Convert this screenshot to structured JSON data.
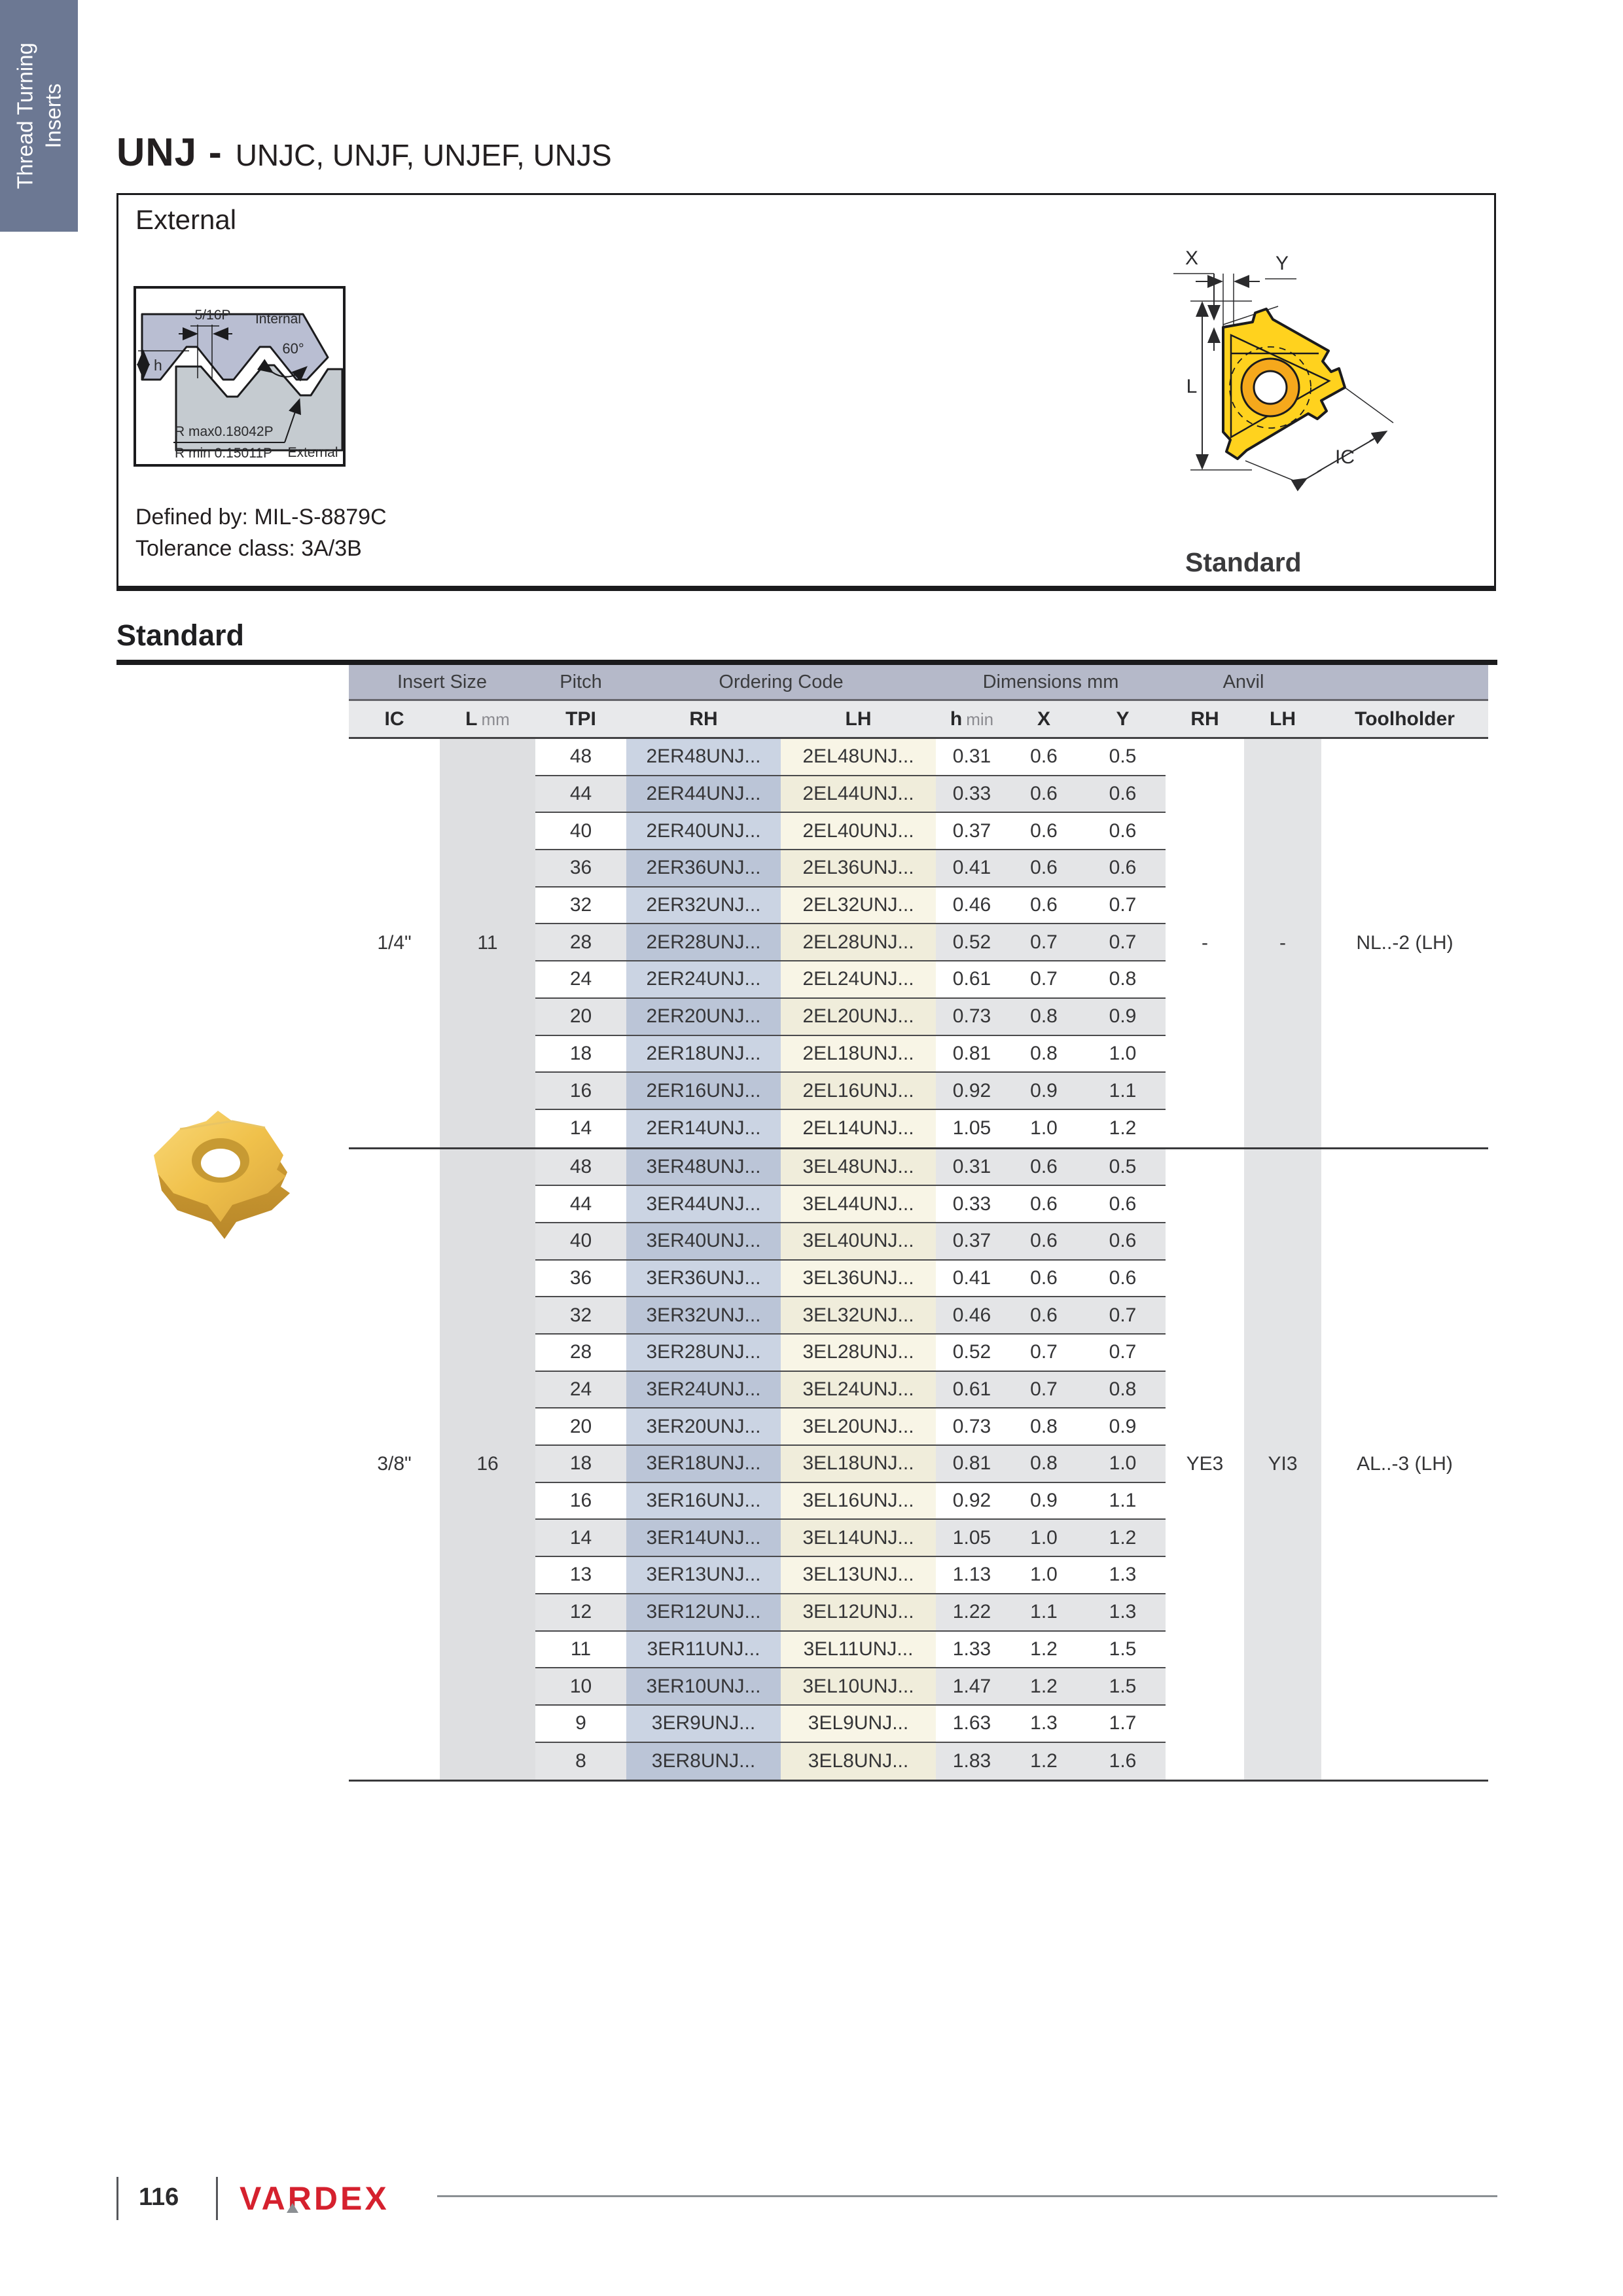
{
  "sidebar_tab": {
    "line1": "Thread Turning",
    "line2": "Inserts"
  },
  "title": {
    "main": "UNJ -",
    "models": "UNJC, UNJF, UNJEF, UNJS"
  },
  "external_panel": {
    "heading": "External",
    "defined_by": "Defined by: MIL-S-8879C",
    "tolerance": "Tolerance class: 3A/3B",
    "thread_diagram": {
      "pitch": "5/16P",
      "internal": "Internal",
      "angle": "60°",
      "h": "h",
      "r_max": "R max0.18042P",
      "r_min": "R min 0.15011P",
      "external": "External"
    },
    "insert_diagram": {
      "x": "X",
      "y": "Y",
      "l": "L",
      "ic": "IC",
      "caption": "Standard"
    }
  },
  "section_heading": "Standard",
  "table": {
    "group_headers": [
      {
        "label": "Insert Size"
      },
      {
        "label": "Pitch"
      },
      {
        "label": "Ordering Code"
      },
      {
        "label": "Dimensions mm"
      },
      {
        "label": "Anvil"
      }
    ],
    "subheaders": {
      "ic": "IC",
      "l": {
        "bold": "L",
        "unit": "mm"
      },
      "tpi": "TPI",
      "rh": "RH",
      "lh": "LH",
      "hmin": {
        "bold": "h",
        "unit": "min"
      },
      "x": "X",
      "y": "Y",
      "anvil_rh": "RH",
      "anvil_lh": "LH",
      "toolholder": "Toolholder"
    },
    "sections": [
      {
        "ic": "1/4\"",
        "l_mm": "11",
        "anvil_rh": "-",
        "anvil_lh": "-",
        "toolholder": "NL..-2 (LH)",
        "rows": [
          {
            "tpi": "48",
            "rh": "2ER48UNJ...",
            "lh": "2EL48UNJ...",
            "h_min": "0.31",
            "x": "0.6",
            "y": "0.5"
          },
          {
            "tpi": "44",
            "rh": "2ER44UNJ...",
            "lh": "2EL44UNJ...",
            "h_min": "0.33",
            "x": "0.6",
            "y": "0.6"
          },
          {
            "tpi": "40",
            "rh": "2ER40UNJ...",
            "lh": "2EL40UNJ...",
            "h_min": "0.37",
            "x": "0.6",
            "y": "0.6"
          },
          {
            "tpi": "36",
            "rh": "2ER36UNJ...",
            "lh": "2EL36UNJ...",
            "h_min": "0.41",
            "x": "0.6",
            "y": "0.6"
          },
          {
            "tpi": "32",
            "rh": "2ER32UNJ...",
            "lh": "2EL32UNJ...",
            "h_min": "0.46",
            "x": "0.6",
            "y": "0.7"
          },
          {
            "tpi": "28",
            "rh": "2ER28UNJ...",
            "lh": "2EL28UNJ...",
            "h_min": "0.52",
            "x": "0.7",
            "y": "0.7"
          },
          {
            "tpi": "24",
            "rh": "2ER24UNJ...",
            "lh": "2EL24UNJ...",
            "h_min": "0.61",
            "x": "0.7",
            "y": "0.8"
          },
          {
            "tpi": "20",
            "rh": "2ER20UNJ...",
            "lh": "2EL20UNJ...",
            "h_min": "0.73",
            "x": "0.8",
            "y": "0.9"
          },
          {
            "tpi": "18",
            "rh": "2ER18UNJ...",
            "lh": "2EL18UNJ...",
            "h_min": "0.81",
            "x": "0.8",
            "y": "1.0"
          },
          {
            "tpi": "16",
            "rh": "2ER16UNJ...",
            "lh": "2EL16UNJ...",
            "h_min": "0.92",
            "x": "0.9",
            "y": "1.1"
          },
          {
            "tpi": "14",
            "rh": "2ER14UNJ...",
            "lh": "2EL14UNJ...",
            "h_min": "1.05",
            "x": "1.0",
            "y": "1.2"
          }
        ]
      },
      {
        "ic": "3/8\"",
        "l_mm": "16",
        "anvil_rh": "YE3",
        "anvil_lh": "YI3",
        "toolholder": "AL..-3 (LH)",
        "rows": [
          {
            "tpi": "48",
            "rh": "3ER48UNJ...",
            "lh": "3EL48UNJ...",
            "h_min": "0.31",
            "x": "0.6",
            "y": "0.5"
          },
          {
            "tpi": "44",
            "rh": "3ER44UNJ...",
            "lh": "3EL44UNJ...",
            "h_min": "0.33",
            "x": "0.6",
            "y": "0.6"
          },
          {
            "tpi": "40",
            "rh": "3ER40UNJ...",
            "lh": "3EL40UNJ...",
            "h_min": "0.37",
            "x": "0.6",
            "y": "0.6"
          },
          {
            "tpi": "36",
            "rh": "3ER36UNJ...",
            "lh": "3EL36UNJ...",
            "h_min": "0.41",
            "x": "0.6",
            "y": "0.6"
          },
          {
            "tpi": "32",
            "rh": "3ER32UNJ...",
            "lh": "3EL32UNJ...",
            "h_min": "0.46",
            "x": "0.6",
            "y": "0.7"
          },
          {
            "tpi": "28",
            "rh": "3ER28UNJ...",
            "lh": "3EL28UNJ...",
            "h_min": "0.52",
            "x": "0.7",
            "y": "0.7"
          },
          {
            "tpi": "24",
            "rh": "3ER24UNJ...",
            "lh": "3EL24UNJ...",
            "h_min": "0.61",
            "x": "0.7",
            "y": "0.8"
          },
          {
            "tpi": "20",
            "rh": "3ER20UNJ...",
            "lh": "3EL20UNJ...",
            "h_min": "0.73",
            "x": "0.8",
            "y": "0.9"
          },
          {
            "tpi": "18",
            "rh": "3ER18UNJ...",
            "lh": "3EL18UNJ...",
            "h_min": "0.81",
            "x": "0.8",
            "y": "1.0"
          },
          {
            "tpi": "16",
            "rh": "3ER16UNJ...",
            "lh": "3EL16UNJ...",
            "h_min": "0.92",
            "x": "0.9",
            "y": "1.1"
          },
          {
            "tpi": "14",
            "rh": "3ER14UNJ...",
            "lh": "3EL14UNJ...",
            "h_min": "1.05",
            "x": "1.0",
            "y": "1.2"
          },
          {
            "tpi": "13",
            "rh": "3ER13UNJ...",
            "lh": "3EL13UNJ...",
            "h_min": "1.13",
            "x": "1.0",
            "y": "1.3"
          },
          {
            "tpi": "12",
            "rh": "3ER12UNJ...",
            "lh": "3EL12UNJ...",
            "h_min": "1.22",
            "x": "1.1",
            "y": "1.3"
          },
          {
            "tpi": "11",
            "rh": "3ER11UNJ...",
            "lh": "3EL11UNJ...",
            "h_min": "1.33",
            "x": "1.2",
            "y": "1.5"
          },
          {
            "tpi": "10",
            "rh": "3ER10UNJ...",
            "lh": "3EL10UNJ...",
            "h_min": "1.47",
            "x": "1.2",
            "y": "1.5"
          },
          {
            "tpi": "9",
            "rh": "3ER9UNJ...",
            "lh": "3EL9UNJ...",
            "h_min": "1.63",
            "x": "1.3",
            "y": "1.7"
          },
          {
            "tpi": "8",
            "rh": "3ER8UNJ...",
            "lh": "3EL8UNJ...",
            "h_min": "1.83",
            "x": "1.2",
            "y": "1.6"
          }
        ]
      }
    ]
  },
  "footer": {
    "page": "116",
    "logo": "VARDEX"
  },
  "colors": {
    "tab": "#6c7893",
    "table_group_header": "#b5b9c9",
    "row_stripe": "#e4e5e7",
    "rh_light": "#cbd4e3",
    "rh_dark": "#bbc5d7",
    "lh_light": "#f8f5e6",
    "lh_dark": "#f0eddb",
    "l_mm_band": "#dedfe1",
    "anvil_lh_band": "#e3e4e6",
    "logo_red": "#d5212e",
    "insert_yellow": "#ffd21e"
  }
}
